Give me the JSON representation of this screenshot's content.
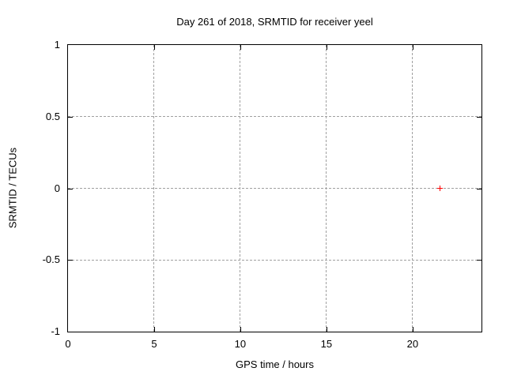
{
  "chart_data": {
    "type": "scatter",
    "title": "Day 261 of 2018, SRMTID for receiver yeel",
    "xlabel": "GPS time / hours",
    "ylabel": "SRMTID / TECUs",
    "xlim": [
      0,
      24
    ],
    "ylim": [
      -1,
      1
    ],
    "xticks": [
      0,
      5,
      10,
      15,
      20
    ],
    "xticklabels": [
      "0",
      "5",
      "10",
      "15",
      "20"
    ],
    "yticks": [
      1,
      0.5,
      0,
      -0.5,
      -1
    ],
    "yticklabels": [
      "1",
      "0.5",
      "0",
      "-0.5",
      "-1"
    ],
    "grid": true,
    "legend": "none",
    "series": [
      {
        "name": "SRMTID",
        "marker": "plus",
        "color": "#ff0000",
        "points": [
          {
            "x": 21.6,
            "y": 0.0
          }
        ]
      }
    ],
    "colors": {
      "background": "#ffffff",
      "frame": "#000000",
      "grid": "#a0a0a0",
      "text": "#000000"
    }
  }
}
